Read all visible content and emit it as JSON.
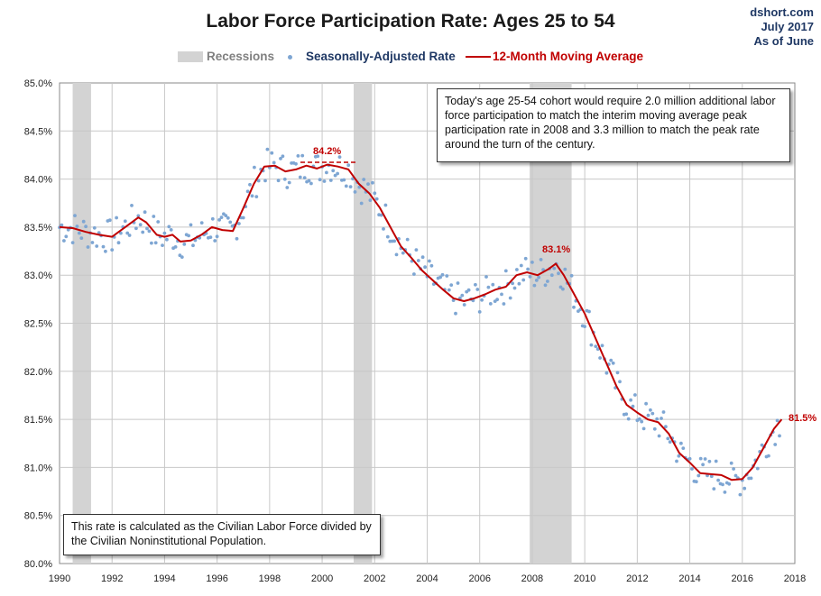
{
  "header": {
    "title": "Labor Force Participation Rate: Ages 25 to 54",
    "source_lines": [
      "dshort.com",
      "July 2017",
      "As of June"
    ]
  },
  "legend": {
    "recessions": "Recessions",
    "sa_rate": "Seasonally-Adjusted Rate",
    "moving_avg": "12-Month Moving Average"
  },
  "annotations": {
    "top_box": "Today's age 25-54  cohort would require 2.0 million additional labor force participation to match the interim moving average peak participation rate in 2008  and 3.3 million to match the peak rate around the turn of the century.",
    "bottom_box": "This rate is calculated as the Civilian Labor Force divided by the Civilian Noninstitutional Population.",
    "peak_2000": "84.2%",
    "peak_2008": "83.1%",
    "latest": "81.5%"
  },
  "colors": {
    "moving_avg": "#c00000",
    "dots": "#7ea6d3",
    "recession": "#d3d3d3",
    "grid": "#c8c8c8",
    "label_red": "#c00000",
    "legend_blue": "#1f3864"
  },
  "chart_data": {
    "type": "line",
    "title": "Labor Force Participation Rate: Ages 25 to 54",
    "xlabel": "",
    "ylabel": "",
    "xlim": [
      1990,
      2018
    ],
    "ylim": [
      80.0,
      85.0
    ],
    "grid": true,
    "x_ticks": [
      "1990",
      "1992",
      "1994",
      "1996",
      "1998",
      "2000",
      "2002",
      "2004",
      "2006",
      "2008",
      "2010",
      "2012",
      "2014",
      "2016",
      "2018"
    ],
    "y_ticks": [
      "80.0%",
      "80.5%",
      "81.0%",
      "81.5%",
      "82.0%",
      "82.5%",
      "83.0%",
      "83.5%",
      "84.0%",
      "84.5%",
      "85.0%"
    ],
    "recessions": [
      [
        1990.5,
        1991.2
      ],
      [
        2001.2,
        2001.9
      ],
      [
        2007.9,
        2009.5
      ]
    ],
    "moving_average": [
      [
        1990.0,
        83.5
      ],
      [
        1990.5,
        83.49
      ],
      [
        1991.0,
        83.45
      ],
      [
        1991.5,
        83.42
      ],
      [
        1992.0,
        83.4
      ],
      [
        1992.5,
        83.5
      ],
      [
        1993.0,
        83.6
      ],
      [
        1993.3,
        83.55
      ],
      [
        1993.7,
        83.42
      ],
      [
        1994.0,
        83.4
      ],
      [
        1994.3,
        83.42
      ],
      [
        1994.6,
        83.35
      ],
      [
        1995.0,
        83.36
      ],
      [
        1995.4,
        83.42
      ],
      [
        1995.8,
        83.5
      ],
      [
        1996.2,
        83.47
      ],
      [
        1996.6,
        83.46
      ],
      [
        1997.0,
        83.7
      ],
      [
        1997.4,
        83.95
      ],
      [
        1997.8,
        84.13
      ],
      [
        1998.2,
        84.14
      ],
      [
        1998.6,
        84.08
      ],
      [
        1999.0,
        84.1
      ],
      [
        1999.4,
        84.14
      ],
      [
        1999.8,
        84.11
      ],
      [
        2000.2,
        84.15
      ],
      [
        2000.6,
        84.13
      ],
      [
        2001.0,
        84.1
      ],
      [
        2001.4,
        83.95
      ],
      [
        2001.8,
        83.85
      ],
      [
        2002.2,
        83.7
      ],
      [
        2002.6,
        83.5
      ],
      [
        2003.0,
        83.3
      ],
      [
        2003.4,
        83.18
      ],
      [
        2003.8,
        83.05
      ],
      [
        2004.2,
        82.95
      ],
      [
        2004.6,
        82.85
      ],
      [
        2005.0,
        82.76
      ],
      [
        2005.4,
        82.73
      ],
      [
        2005.8,
        82.76
      ],
      [
        2006.2,
        82.8
      ],
      [
        2006.6,
        82.85
      ],
      [
        2007.0,
        82.88
      ],
      [
        2007.4,
        83.0
      ],
      [
        2007.8,
        83.03
      ],
      [
        2008.2,
        83.0
      ],
      [
        2008.6,
        83.06
      ],
      [
        2008.9,
        83.12
      ],
      [
        2009.2,
        83.0
      ],
      [
        2009.6,
        82.8
      ],
      [
        2010.0,
        82.6
      ],
      [
        2010.4,
        82.35
      ],
      [
        2010.8,
        82.1
      ],
      [
        2011.2,
        81.85
      ],
      [
        2011.6,
        81.65
      ],
      [
        2012.0,
        81.57
      ],
      [
        2012.4,
        81.5
      ],
      [
        2012.8,
        81.47
      ],
      [
        2013.2,
        81.35
      ],
      [
        2013.6,
        81.15
      ],
      [
        2014.0,
        81.05
      ],
      [
        2014.4,
        80.94
      ],
      [
        2014.8,
        80.93
      ],
      [
        2015.2,
        80.92
      ],
      [
        2015.6,
        80.87
      ],
      [
        2016.0,
        80.88
      ],
      [
        2016.4,
        81.0
      ],
      [
        2016.8,
        81.2
      ],
      [
        2017.2,
        81.4
      ],
      [
        2017.5,
        81.5
      ]
    ]
  }
}
